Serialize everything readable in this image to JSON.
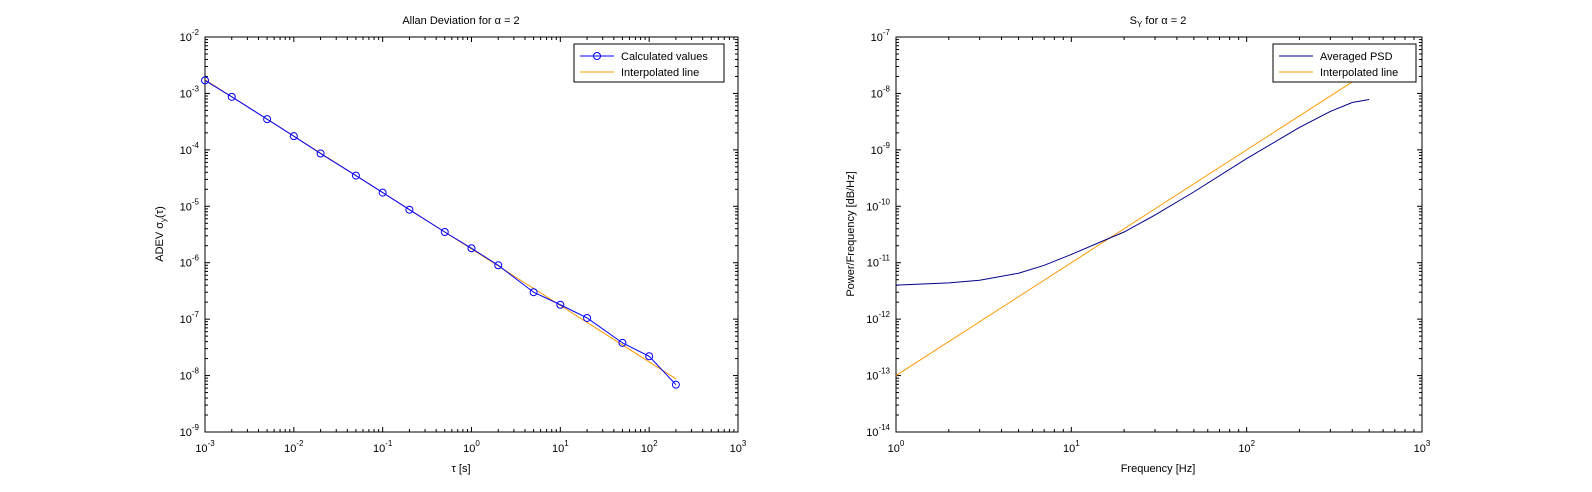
{
  "chart_data": [
    {
      "type": "line",
      "title_main": "Allan Deviation for ",
      "title_alpha": "α = 2",
      "xlabel": "τ [s]",
      "ylabel_main": "ADEV σ",
      "ylabel_sub": "y",
      "ylabel_end": "(τ)",
      "xscale": "log",
      "yscale": "log",
      "xlim_exp": [
        -3,
        3
      ],
      "ylim_exp": [
        -9,
        -2
      ],
      "legend_position": "top-right",
      "colors": {
        "series": "#0000ff",
        "fit": "#ff9900"
      },
      "series": [
        {
          "name": "Calculated values",
          "marker": "circle",
          "x": [
            0.001,
            0.002,
            0.005,
            0.01,
            0.02,
            0.05,
            0.1,
            0.2,
            0.5,
            1,
            2,
            5,
            10,
            20,
            50,
            100,
            200
          ],
          "y": [
            0.0017,
            0.00087,
            0.00035,
            0.000175,
            8.6e-05,
            3.5e-05,
            1.75e-05,
            8.7e-06,
            3.5e-06,
            1.8e-06,
            9e-07,
            3e-07,
            1.8e-07,
            1.05e-07,
            3.8e-08,
            2.2e-08,
            6.9e-09
          ]
        },
        {
          "name": "Interpolated line",
          "x": [
            0.001,
            200
          ],
          "y": [
            0.00175,
            8.75e-09
          ]
        }
      ]
    },
    {
      "type": "line",
      "title_main": "S",
      "title_sub": "Y",
      "title_rest": " for α = 2",
      "xlabel": "Frequency [Hz]",
      "ylabel": "Power/Frequency [dB/Hz]",
      "xscale": "log",
      "yscale": "log",
      "xlim_exp": [
        0,
        3
      ],
      "ylim_exp": [
        -14,
        -7
      ],
      "legend_position": "top-right",
      "colors": {
        "series": "#00008b",
        "fit": "#ff9900"
      },
      "series": [
        {
          "name": "Averaged PSD",
          "x": [
            1,
            2,
            3,
            5,
            7,
            10,
            15,
            20,
            30,
            50,
            100,
            200,
            300,
            400,
            500
          ],
          "y": [
            4e-12,
            4.4e-12,
            4.9e-12,
            6.5e-12,
            9e-12,
            1.4e-11,
            2.4e-11,
            3.5e-11,
            7e-11,
            1.8e-10,
            7e-10,
            2.5e-09,
            4.8e-09,
            6.9e-09,
            7.8e-09
          ]
        },
        {
          "name": "Interpolated line",
          "x": [
            1,
            400
          ],
          "y": [
            1e-13,
            1.6e-08
          ]
        }
      ]
    }
  ]
}
